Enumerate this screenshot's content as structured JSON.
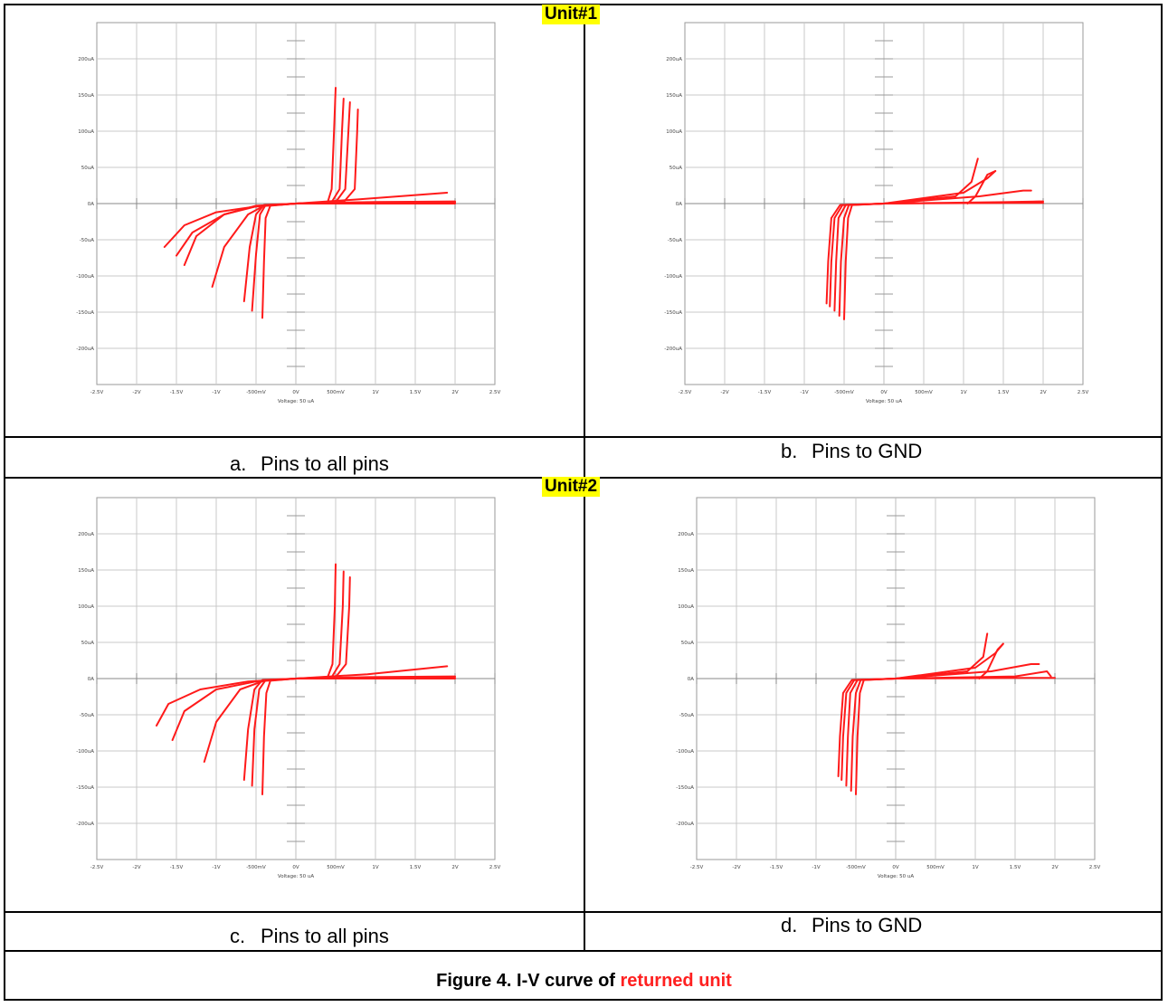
{
  "figure": {
    "title_prefix": "Figure 4. I-V curve of ",
    "title_highlight": "returned unit"
  },
  "units": [
    {
      "label": "Unit#1"
    },
    {
      "label": "Unit#2"
    }
  ],
  "panels": [
    {
      "letter": "a.",
      "caption": "Pins to all pins"
    },
    {
      "letter": "b.",
      "caption": "Pins to GND"
    },
    {
      "letter": "c.",
      "caption": "Pins to all pins"
    },
    {
      "letter": "d.",
      "caption": "Pins to GND"
    }
  ],
  "colors": {
    "trace": "#ff1a1a",
    "grid": "#c8c8c8",
    "highlight": "#ffff00"
  },
  "chart_data": [
    {
      "type": "line",
      "panel": "a",
      "xlabel": "Voltage: 50 uA",
      "ylabel": "",
      "xlim": [
        -2.5,
        2.5
      ],
      "ylim": [
        -250,
        250
      ],
      "x_ticks": [
        "-2.5V",
        "-2V",
        "-1.5V",
        "-1V",
        "-500mV",
        "0V",
        "500mV",
        "1V",
        "1.5V",
        "2V",
        "2.5V"
      ],
      "y_ticks": [
        "200uA",
        "150uA",
        "100uA",
        "50uA",
        "0A",
        "-50uA",
        "-100uA",
        "-150uA",
        "-200uA"
      ],
      "grid": true,
      "series": [
        {
          "x": [
            -1.65,
            -1.4,
            -1.0,
            -0.5,
            0.0,
            0.8,
            1.9
          ],
          "y": [
            -60,
            -30,
            -12,
            -4,
            0,
            6,
            15
          ]
        },
        {
          "x": [
            -1.5,
            -1.3,
            -0.9,
            -0.5,
            0.0,
            0.9,
            2.0
          ],
          "y": [
            -72,
            -40,
            -15,
            -4,
            0,
            2,
            3
          ]
        },
        {
          "x": [
            -1.4,
            -1.25,
            -0.9,
            -0.5,
            0.0,
            1.0,
            2.0
          ],
          "y": [
            -85,
            -45,
            -15,
            -3,
            0,
            2,
            2
          ]
        },
        {
          "x": [
            -1.05,
            -0.9,
            -0.6,
            -0.4,
            0.0,
            1.0,
            2.0
          ],
          "y": [
            -115,
            -60,
            -15,
            -3,
            0,
            1,
            1
          ]
        },
        {
          "x": [
            -0.65,
            -0.58,
            -0.5,
            -0.4,
            0.0,
            1.0,
            2.0
          ],
          "y": [
            -135,
            -60,
            -15,
            -2,
            0,
            0,
            0
          ]
        },
        {
          "x": [
            -0.55,
            -0.5,
            -0.45,
            -0.38,
            0.0
          ],
          "y": [
            -148,
            -70,
            -15,
            -2,
            0
          ]
        },
        {
          "x": [
            -0.42,
            -0.4,
            -0.38,
            -0.32,
            0.0
          ],
          "y": [
            -158,
            -80,
            -20,
            -3,
            0
          ]
        },
        {
          "x": [
            0.0,
            0.4,
            0.45,
            0.48,
            0.5
          ],
          "y": [
            0,
            2,
            20,
            100,
            160
          ]
        },
        {
          "x": [
            0.0,
            0.45,
            0.55,
            0.58,
            0.6
          ],
          "y": [
            0,
            2,
            20,
            100,
            145
          ]
        },
        {
          "x": [
            0.0,
            0.5,
            0.62,
            0.66,
            0.68
          ],
          "y": [
            0,
            2,
            20,
            100,
            140
          ]
        },
        {
          "x": [
            0.0,
            0.6,
            0.74,
            0.77,
            0.78
          ],
          "y": [
            0,
            2,
            20,
            100,
            130
          ]
        }
      ]
    },
    {
      "type": "line",
      "panel": "b",
      "xlabel": "Voltage: 50 uA",
      "ylabel": "",
      "xlim": [
        -2.5,
        2.5
      ],
      "ylim": [
        -250,
        250
      ],
      "x_ticks": [
        "-2.5V",
        "-2V",
        "-1.5V",
        "-1V",
        "-500mV",
        "0V",
        "500mV",
        "1V",
        "1.5V",
        "2V",
        "2.5V"
      ],
      "y_ticks": [
        "200uA",
        "150uA",
        "100uA",
        "50uA",
        "0A",
        "-50uA",
        "-100uA",
        "-150uA",
        "-200uA"
      ],
      "grid": true,
      "series": [
        {
          "x": [
            -0.72,
            -0.7,
            -0.66,
            -0.55,
            0.0,
            0.9,
            1.1,
            1.18
          ],
          "y": [
            -138,
            -80,
            -20,
            -2,
            0,
            10,
            30,
            62
          ]
        },
        {
          "x": [
            -0.68,
            -0.66,
            -0.62,
            -0.52,
            0.0,
            1.0,
            1.3,
            1.4
          ],
          "y": [
            -142,
            -80,
            -20,
            -2,
            0,
            15,
            35,
            45
          ]
        },
        {
          "x": [
            -0.62,
            -0.6,
            -0.57,
            -0.48,
            0.0,
            1.2,
            1.75,
            1.85
          ],
          "y": [
            -148,
            -80,
            -20,
            -2,
            0,
            10,
            18,
            18
          ]
        },
        {
          "x": [
            -0.56,
            -0.54,
            -0.5,
            -0.44,
            0.0,
            1.5,
            1.95,
            2.0
          ],
          "y": [
            -155,
            -80,
            -20,
            -2,
            0,
            2,
            3,
            3
          ]
        },
        {
          "x": [
            -0.5,
            -0.48,
            -0.45,
            -0.4,
            0.0,
            1.6,
            2.0
          ],
          "y": [
            -160,
            -80,
            -20,
            -2,
            0,
            1,
            1
          ]
        },
        {
          "x": [
            1.05,
            1.15,
            1.3,
            1.4
          ],
          "y": [
            0,
            10,
            40,
            45
          ]
        }
      ]
    },
    {
      "type": "line",
      "panel": "c",
      "xlabel": "Voltage: 50 uA",
      "ylabel": "",
      "xlim": [
        -2.5,
        2.5
      ],
      "ylim": [
        -250,
        250
      ],
      "x_ticks": [
        "-2.5V",
        "-2V",
        "-1.5V",
        "-1V",
        "-500mV",
        "0V",
        "500mV",
        "1V",
        "1.5V",
        "2V",
        "2.5V"
      ],
      "y_ticks": [
        "200uA",
        "150uA",
        "100uA",
        "50uA",
        "0A",
        "-50uA",
        "-100uA",
        "-150uA",
        "-200uA"
      ],
      "grid": true,
      "series": [
        {
          "x": [
            -1.75,
            -1.6,
            -1.2,
            -0.6,
            0.0,
            0.9,
            1.9
          ],
          "y": [
            -65,
            -35,
            -15,
            -4,
            0,
            6,
            17
          ]
        },
        {
          "x": [
            -1.55,
            -1.4,
            -1.0,
            -0.5,
            0.0,
            0.9,
            2.0
          ],
          "y": [
            -85,
            -45,
            -15,
            -4,
            0,
            2,
            3
          ]
        },
        {
          "x": [
            -1.15,
            -1.0,
            -0.7,
            -0.4,
            0.0,
            1.0,
            2.0
          ],
          "y": [
            -115,
            -60,
            -15,
            -3,
            0,
            1,
            1
          ]
        },
        {
          "x": [
            -0.65,
            -0.6,
            -0.52,
            -0.42,
            0.0,
            1.0,
            2.0
          ],
          "y": [
            -140,
            -70,
            -15,
            -2,
            0,
            0,
            0
          ]
        },
        {
          "x": [
            -0.55,
            -0.52,
            -0.46,
            -0.38,
            0.0
          ],
          "y": [
            -148,
            -70,
            -15,
            -2,
            0
          ]
        },
        {
          "x": [
            -0.42,
            -0.4,
            -0.37,
            -0.32,
            0.0
          ],
          "y": [
            -160,
            -80,
            -20,
            -3,
            0
          ]
        },
        {
          "x": [
            0.0,
            0.4,
            0.46,
            0.49,
            0.5
          ],
          "y": [
            0,
            2,
            20,
            100,
            158
          ]
        },
        {
          "x": [
            0.0,
            0.45,
            0.55,
            0.59,
            0.6
          ],
          "y": [
            0,
            2,
            20,
            100,
            148
          ]
        },
        {
          "x": [
            0.0,
            0.5,
            0.63,
            0.67,
            0.68
          ],
          "y": [
            0,
            2,
            20,
            100,
            140
          ]
        }
      ]
    },
    {
      "type": "line",
      "panel": "d",
      "xlabel": "Voltage: 50 uA",
      "ylabel": "",
      "xlim": [
        -2.5,
        2.5
      ],
      "ylim": [
        -250,
        250
      ],
      "x_ticks": [
        "-2.5V",
        "-2V",
        "-1.5V",
        "-1V",
        "-500mV",
        "0V",
        "500mV",
        "1V",
        "1.5V",
        "2V",
        "2.5V"
      ],
      "y_ticks": [
        "200uA",
        "150uA",
        "100uA",
        "50uA",
        "0A",
        "-50uA",
        "-100uA",
        "-150uA",
        "-200uA"
      ],
      "grid": true,
      "series": [
        {
          "x": [
            -0.72,
            -0.7,
            -0.66,
            -0.55,
            0.0,
            0.9,
            1.1,
            1.15
          ],
          "y": [
            -135,
            -80,
            -20,
            -2,
            0,
            10,
            30,
            62
          ]
        },
        {
          "x": [
            -0.68,
            -0.66,
            -0.62,
            -0.52,
            0.0,
            1.0,
            1.25,
            1.35
          ],
          "y": [
            -140,
            -80,
            -20,
            -2,
            0,
            15,
            35,
            48
          ]
        },
        {
          "x": [
            -0.62,
            -0.6,
            -0.57,
            -0.48,
            0.0,
            1.2,
            1.7,
            1.8
          ],
          "y": [
            -148,
            -80,
            -20,
            -2,
            0,
            10,
            20,
            20
          ]
        },
        {
          "x": [
            -0.56,
            -0.54,
            -0.5,
            -0.44,
            0.0,
            1.5,
            1.9,
            1.95
          ],
          "y": [
            -155,
            -80,
            -20,
            -2,
            0,
            3,
            10,
            3
          ]
        },
        {
          "x": [
            -0.5,
            -0.48,
            -0.45,
            -0.4,
            0.0,
            1.6,
            2.0
          ],
          "y": [
            -160,
            -80,
            -20,
            -2,
            0,
            1,
            1
          ]
        },
        {
          "x": [
            1.05,
            1.15,
            1.28,
            1.35
          ],
          "y": [
            0,
            10,
            40,
            48
          ]
        }
      ]
    }
  ]
}
